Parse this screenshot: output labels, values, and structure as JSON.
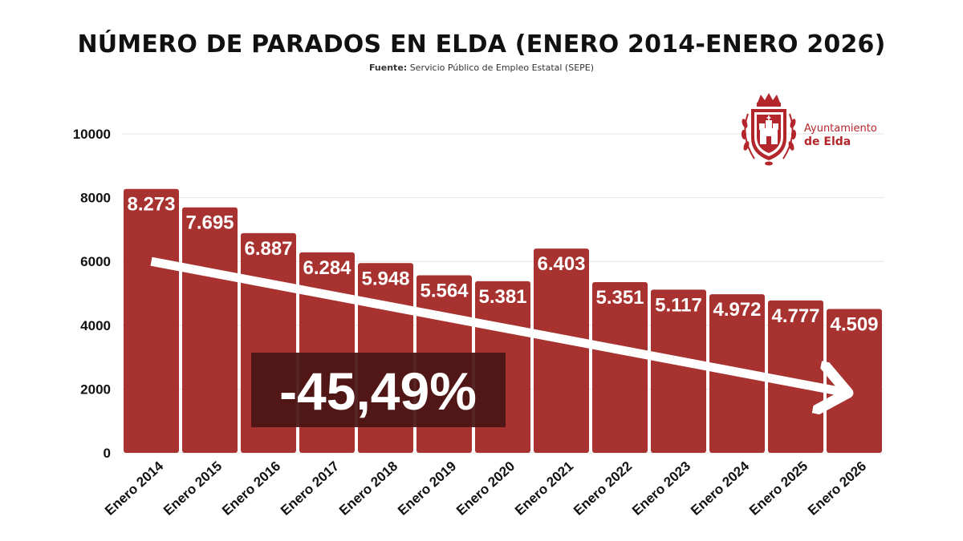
{
  "title": "NÚMERO DE PARADOS EN ELDA (ENERO 2014-ENERO 2026)",
  "source": {
    "label": "Fuente:",
    "text": "Servicio Público de Empleo Estatal (SEPE)"
  },
  "logo": {
    "line1": "Ayuntamiento",
    "line2": "de Elda",
    "icon": "city-coat-of-arms-icon"
  },
  "chart_data": {
    "type": "bar",
    "categories": [
      "Enero 2014",
      "Enero 2015",
      "Enero 2016",
      "Enero 2017",
      "Enero 2018",
      "Enero 2019",
      "Enero 2020",
      "Enero 2021",
      "Enero 2022",
      "Enero 2023",
      "Enero 2024",
      "Enero 2025",
      "Enero 2026"
    ],
    "values": [
      8273,
      7695,
      6887,
      6284,
      5948,
      5564,
      5381,
      6403,
      5351,
      5117,
      4972,
      4777,
      4509
    ],
    "value_labels": [
      "8.273",
      "7.695",
      "6.887",
      "6.284",
      "5.948",
      "5.564",
      "5.381",
      "6.403",
      "5.351",
      "5.117",
      "4.972",
      "4.777",
      "4.509"
    ],
    "yticks": [
      0,
      2000,
      4000,
      6000,
      8000,
      10000
    ],
    "ylim": [
      0,
      10000
    ],
    "grid": true,
    "bar_color": "#a8322f",
    "annotation": {
      "text": "-45,49%",
      "background": "#4a1414"
    },
    "trend_arrow": {
      "from_category": "Enero 2014",
      "from_value": 6000,
      "to_category": "Enero 2026",
      "to_value": 1900,
      "color": "#ffffff"
    }
  }
}
